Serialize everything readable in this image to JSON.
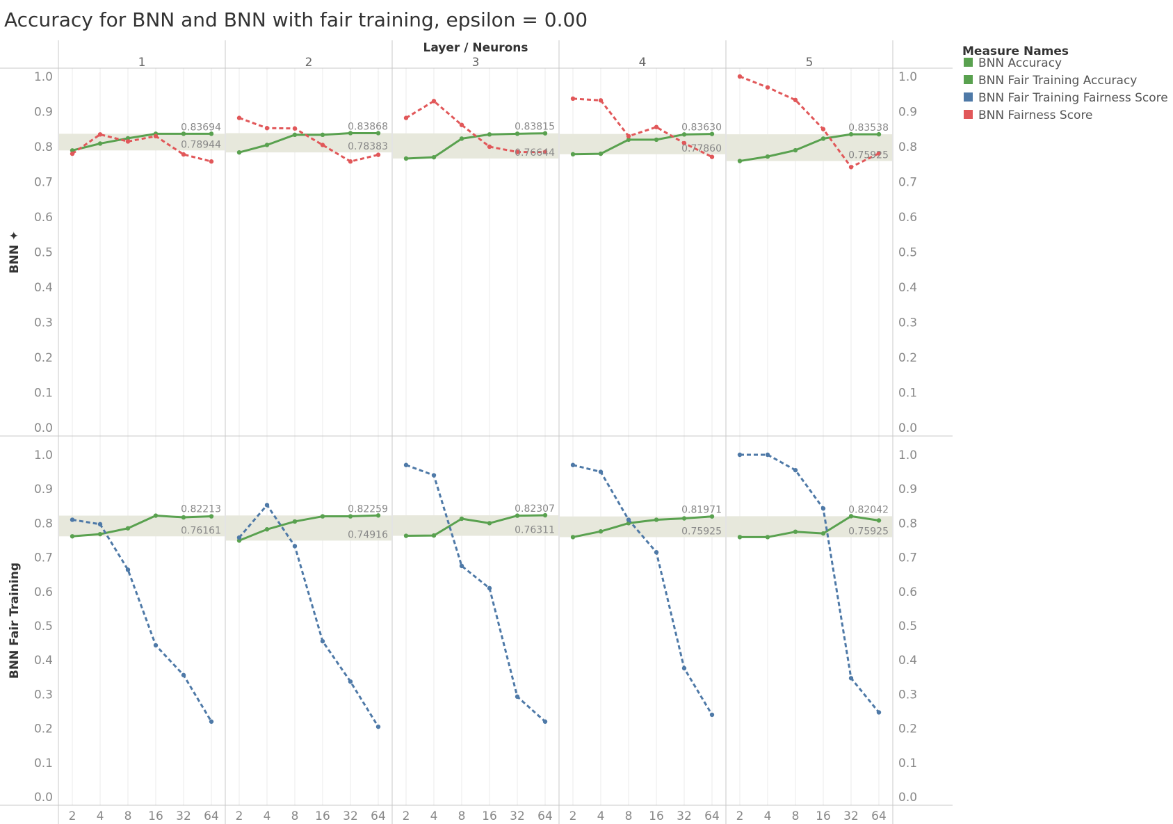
{
  "title": "Accuracy for BNN and BNN with fair training, epsilon = 0.00",
  "chart_data": {
    "type": "line",
    "title": "Accuracy for BNN and BNN with fair training, epsilon = 0.00",
    "column_header": "Layer / Neurons",
    "layers": [
      "1",
      "2",
      "3",
      "4",
      "5"
    ],
    "x": [
      "2",
      "4",
      "8",
      "16",
      "32",
      "64"
    ],
    "ylim": [
      0,
      1
    ],
    "y_ticks": [
      "1.0",
      "0.9",
      "0.8",
      "0.7",
      "0.6",
      "0.5",
      "0.4",
      "0.3",
      "0.2",
      "0.1",
      "0.0"
    ],
    "legend": {
      "title": "Measure Names",
      "position": "top-right",
      "items": [
        {
          "name": "BNN Accuracy",
          "color": "#59a14f"
        },
        {
          "name": "BNN Fair Training Accuracy",
          "color": "#59a14f"
        },
        {
          "name": "BNN Fair Training Fairness Score",
          "color": "#4e79a7"
        },
        {
          "name": "BNN Fairness Score",
          "color": "#e15759"
        }
      ]
    },
    "rows": [
      {
        "label": "BNN",
        "panels": [
          {
            "layer": "1",
            "band": {
              "max": 0.83694,
              "min": 0.78944
            },
            "series": [
              {
                "name": "BNN Accuracy",
                "color": "#59a14f",
                "dashed": false,
                "values": [
                  0.7894,
                  0.809,
                  0.824,
                  0.8369,
                  0.8369,
                  0.8369
                ]
              },
              {
                "name": "BNN Fairness Score",
                "color": "#e15759",
                "dashed": true,
                "values": [
                  0.78,
                  0.835,
                  0.815,
                  0.83,
                  0.778,
                  0.758
                ]
              }
            ]
          },
          {
            "layer": "2",
            "band": {
              "max": 0.83868,
              "min": 0.78383
            },
            "series": [
              {
                "name": "BNN Accuracy",
                "color": "#59a14f",
                "dashed": false,
                "values": [
                  0.7838,
                  0.805,
                  0.834,
                  0.834,
                  0.8387,
                  0.8387
                ]
              },
              {
                "name": "BNN Fairness Score",
                "color": "#e15759",
                "dashed": true,
                "values": [
                  0.882,
                  0.853,
                  0.852,
                  0.805,
                  0.758,
                  0.777
                ]
              }
            ]
          },
          {
            "layer": "3",
            "band": {
              "max": 0.83815,
              "min": 0.76644
            },
            "series": [
              {
                "name": "BNN Accuracy",
                "color": "#59a14f",
                "dashed": false,
                "values": [
                  0.7664,
                  0.77,
                  0.823,
                  0.835,
                  0.837,
                  0.8382
                ]
              },
              {
                "name": "BNN Fairness Score",
                "color": "#e15759",
                "dashed": true,
                "values": [
                  0.882,
                  0.93,
                  0.862,
                  0.8,
                  0.785,
                  0.785
                ]
              }
            ]
          },
          {
            "layer": "4",
            "band": {
              "max": 0.8363,
              "min": 0.7786
            },
            "series": [
              {
                "name": "BNN Accuracy",
                "color": "#59a14f",
                "dashed": false,
                "values": [
                  0.7786,
                  0.78,
                  0.82,
                  0.82,
                  0.835,
                  0.8363
                ]
              },
              {
                "name": "BNN Fairness Score",
                "color": "#e15759",
                "dashed": true,
                "values": [
                  0.937,
                  0.932,
                  0.83,
                  0.856,
                  0.81,
                  0.771
                ]
              }
            ]
          },
          {
            "layer": "5",
            "band": {
              "max": 0.83538,
              "min": 0.75925
            },
            "series": [
              {
                "name": "BNN Accuracy",
                "color": "#59a14f",
                "dashed": false,
                "values": [
                  0.7593,
                  0.772,
                  0.79,
                  0.823,
                  0.8354,
                  0.8354
                ]
              },
              {
                "name": "BNN Fairness Score",
                "color": "#e15759",
                "dashed": true,
                "values": [
                  1.0,
                  0.969,
                  0.933,
                  0.85,
                  0.742,
                  0.781
                ]
              }
            ]
          }
        ]
      },
      {
        "label": "BNN Fair Training",
        "panels": [
          {
            "layer": "1",
            "band": {
              "max": 0.82213,
              "min": 0.76161
            },
            "series": [
              {
                "name": "BNN Fair Training Accuracy",
                "color": "#59a14f",
                "dashed": false,
                "values": [
                  0.7616,
                  0.768,
                  0.785,
                  0.8221,
                  0.817,
                  0.82
                ]
              },
              {
                "name": "BNN Fair Training Fairness Score",
                "color": "#4e79a7",
                "dashed": true,
                "values": [
                  0.81,
                  0.797,
                  0.664,
                  0.443,
                  0.356,
                  0.22
                ]
              }
            ]
          },
          {
            "layer": "2",
            "band": {
              "max": 0.82259,
              "min": 0.74916
            },
            "series": [
              {
                "name": "BNN Fair Training Accuracy",
                "color": "#59a14f",
                "dashed": false,
                "values": [
                  0.7492,
                  0.782,
                  0.805,
                  0.82,
                  0.82,
                  0.8226
                ]
              },
              {
                "name": "BNN Fair Training Fairness Score",
                "color": "#4e79a7",
                "dashed": true,
                "values": [
                  0.758,
                  0.853,
                  0.733,
                  0.455,
                  0.337,
                  0.205
                ]
              }
            ]
          },
          {
            "layer": "3",
            "band": {
              "max": 0.82307,
              "min": 0.76311
            },
            "series": [
              {
                "name": "BNN Fair Training Accuracy",
                "color": "#59a14f",
                "dashed": false,
                "values": [
                  0.7631,
                  0.764,
                  0.813,
                  0.8,
                  0.822,
                  0.8231
                ]
              },
              {
                "name": "BNN Fair Training Fairness Score",
                "color": "#4e79a7",
                "dashed": true,
                "values": [
                  0.97,
                  0.94,
                  0.675,
                  0.61,
                  0.293,
                  0.22
                ]
              }
            ]
          },
          {
            "layer": "4",
            "band": {
              "max": 0.81971,
              "min": 0.75925
            },
            "series": [
              {
                "name": "BNN Fair Training Accuracy",
                "color": "#59a14f",
                "dashed": false,
                "values": [
                  0.7593,
                  0.776,
                  0.8,
                  0.81,
                  0.814,
                  0.8197
                ]
              },
              {
                "name": "BNN Fair Training Fairness Score",
                "color": "#4e79a7",
                "dashed": true,
                "values": [
                  0.97,
                  0.95,
                  0.81,
                  0.715,
                  0.376,
                  0.24
                ]
              }
            ]
          },
          {
            "layer": "5",
            "band": {
              "max": 0.82042,
              "min": 0.75925
            },
            "series": [
              {
                "name": "BNN Fair Training Accuracy",
                "color": "#59a14f",
                "dashed": false,
                "values": [
                  0.7593,
                  0.7593,
                  0.775,
                  0.77,
                  0.8204,
                  0.808
                ]
              },
              {
                "name": "BNN Fair Training Fairness Score",
                "color": "#4e79a7",
                "dashed": true,
                "values": [
                  1.0,
                  1.0,
                  0.955,
                  0.843,
                  0.347,
                  0.247
                ]
              }
            ]
          }
        ]
      }
    ]
  }
}
